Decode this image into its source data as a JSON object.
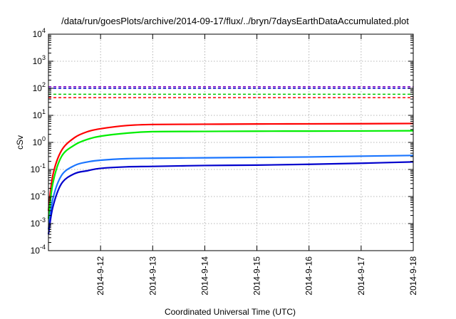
{
  "chart_data": {
    "type": "line",
    "title": "/data/run/goesPlots/archive/2014-09-17/flux/../bryn/7daysEarthDataAccumulated.plot",
    "xlabel": "Coordinated Universal Time (UTC)",
    "ylabel": "cSv",
    "xlim": [
      "2014-09-11T00:00",
      "2014-09-18T00:00"
    ],
    "x_ticks": [
      "2014-9-12",
      "2014-9-13",
      "2014-9-14",
      "2014-9-15",
      "2014-9-16",
      "2014-9-17",
      "2014-9-18"
    ],
    "y_scale": "log",
    "ylim": [
      0.0001,
      10000
    ],
    "y_ticks": [
      {
        "base": "10",
        "exp": "-4"
      },
      {
        "base": "10",
        "exp": "-3"
      },
      {
        "base": "10",
        "exp": "-2"
      },
      {
        "base": "10",
        "exp": "-1"
      },
      {
        "base": "10",
        "exp": "0"
      },
      {
        "base": "10",
        "exp": "1"
      },
      {
        "base": "10",
        "exp": "2"
      },
      {
        "base": "10",
        "exp": "3"
      },
      {
        "base": "10",
        "exp": "4"
      }
    ],
    "grid": true,
    "legend": "none",
    "series": [
      {
        "color": "#ff0000",
        "x": [
          "2014-09-11T00:00",
          "2014-09-11T02:00",
          "2014-09-11T06:00",
          "2014-09-11T12:00",
          "2014-09-11T18:00",
          "2014-09-12T00:00",
          "2014-09-12T12:00",
          "2014-09-13T00:00",
          "2014-09-14T00:00",
          "2014-09-15T00:00",
          "2014-09-16T00:00",
          "2014-09-17T00:00",
          "2014-09-18T00:00"
        ],
        "y": [
          0.003,
          0.06,
          0.5,
          1.5,
          2.5,
          3.2,
          4.2,
          4.6,
          4.7,
          4.8,
          4.85,
          4.9,
          5.0
        ]
      },
      {
        "color": "#00ee00",
        "x": [
          "2014-09-11T00:00",
          "2014-09-11T02:00",
          "2014-09-11T06:00",
          "2014-09-11T12:00",
          "2014-09-11T18:00",
          "2014-09-12T00:00",
          "2014-09-12T12:00",
          "2014-09-13T00:00",
          "2014-09-14T00:00",
          "2014-09-15T00:00",
          "2014-09-16T00:00",
          "2014-09-17T00:00",
          "2014-09-18T00:00"
        ],
        "y": [
          0.0015,
          0.03,
          0.3,
          0.8,
          1.3,
          1.7,
          2.2,
          2.5,
          2.55,
          2.6,
          2.62,
          2.65,
          2.7
        ]
      },
      {
        "color": "#1a75ff",
        "x": [
          "2014-09-11T00:00",
          "2014-09-11T02:00",
          "2014-09-11T06:00",
          "2014-09-11T12:00",
          "2014-09-11T18:00",
          "2014-09-12T00:00",
          "2014-09-12T12:00",
          "2014-09-13T00:00",
          "2014-09-14T00:00",
          "2014-09-15T00:00",
          "2014-09-16T00:00",
          "2014-09-17T00:00",
          "2014-09-18T00:00"
        ],
        "y": [
          0.0006,
          0.008,
          0.06,
          0.14,
          0.19,
          0.22,
          0.25,
          0.26,
          0.27,
          0.28,
          0.29,
          0.31,
          0.33
        ]
      },
      {
        "color": "#0000cc",
        "x": [
          "2014-09-11T00:00",
          "2014-09-11T02:00",
          "2014-09-11T06:00",
          "2014-09-11T12:00",
          "2014-09-11T18:00",
          "2014-09-12T00:00",
          "2014-09-12T12:00",
          "2014-09-13T00:00",
          "2014-09-14T00:00",
          "2014-09-15T00:00",
          "2014-09-16T00:00",
          "2014-09-17T00:00",
          "2014-09-18T00:00"
        ],
        "y": [
          0.0004,
          0.004,
          0.03,
          0.07,
          0.09,
          0.11,
          0.125,
          0.13,
          0.14,
          0.145,
          0.155,
          0.17,
          0.19
        ]
      }
    ],
    "reference_lines": [
      {
        "color": "#8000c0",
        "style": "dashed",
        "y": 115
      },
      {
        "color": "#0000cc",
        "style": "dashed",
        "y": 100
      },
      {
        "color": "#00cc00",
        "style": "dashed",
        "y": 60
      },
      {
        "color": "#ff0000",
        "style": "dashed",
        "y": 45
      }
    ]
  }
}
